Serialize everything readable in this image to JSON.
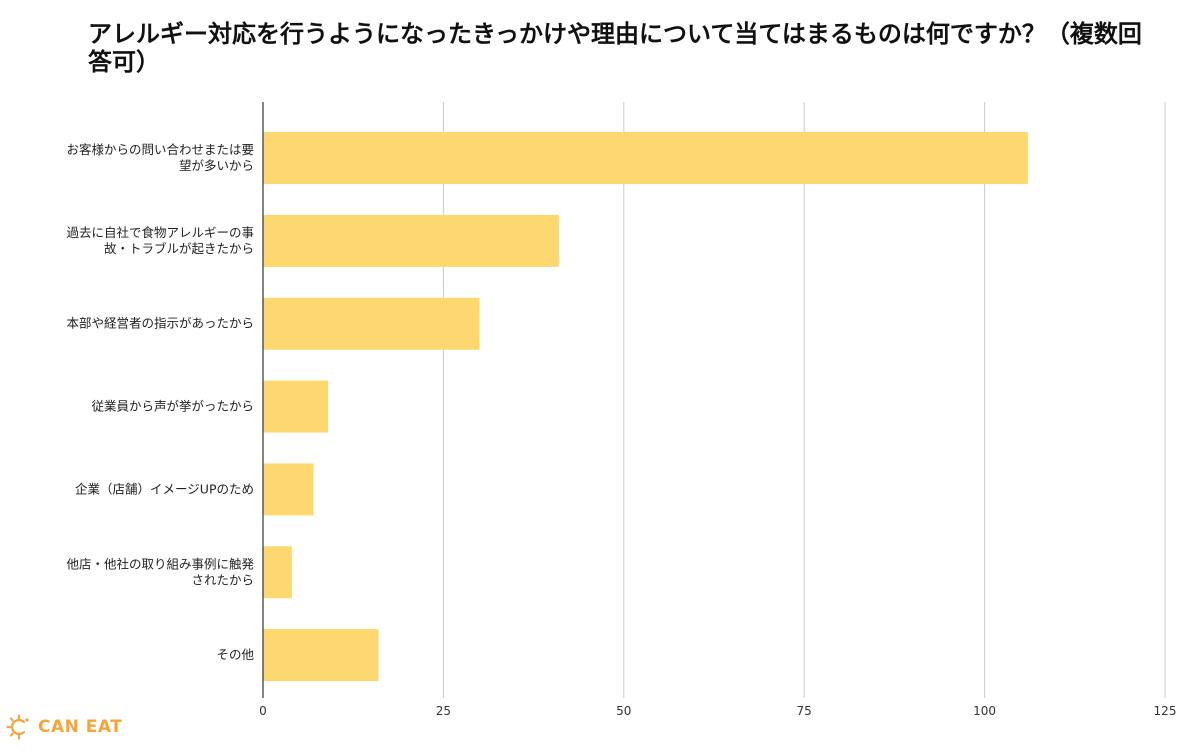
{
  "chart_data": {
    "type": "bar",
    "orientation": "horizontal",
    "title": "アレルギー対応を行うようになったきっかけや理由について当てはまるものは何ですか？（複数回答可）",
    "categories": [
      [
        "お客様からの問い合わせまたは要",
        "望が多いから"
      ],
      [
        "過去に自社で食物アレルギーの事",
        "故・トラブルが起きたから"
      ],
      [
        "本部や経営者の指示があったから"
      ],
      [
        "従業員から声が挙がったから"
      ],
      [
        "企業（店舗）イメージUPのため"
      ],
      [
        "他店・他社の取り組み事例に触発",
        "されたから"
      ],
      [
        "その他"
      ]
    ],
    "values": [
      106,
      41,
      30,
      9,
      7,
      4,
      16
    ],
    "xlim": [
      0,
      125
    ],
    "ticks": [
      "0",
      "25",
      "50",
      "75",
      "100",
      "125"
    ],
    "tick_values": [
      0,
      25,
      50,
      75,
      100,
      125
    ],
    "grid": true,
    "bar_color": "#fdd76f",
    "grid_color": "#cccccc"
  },
  "logo": {
    "text": "CAN EAT",
    "color": "#f4a53a",
    "icon": "can-eat-logo-icon"
  }
}
